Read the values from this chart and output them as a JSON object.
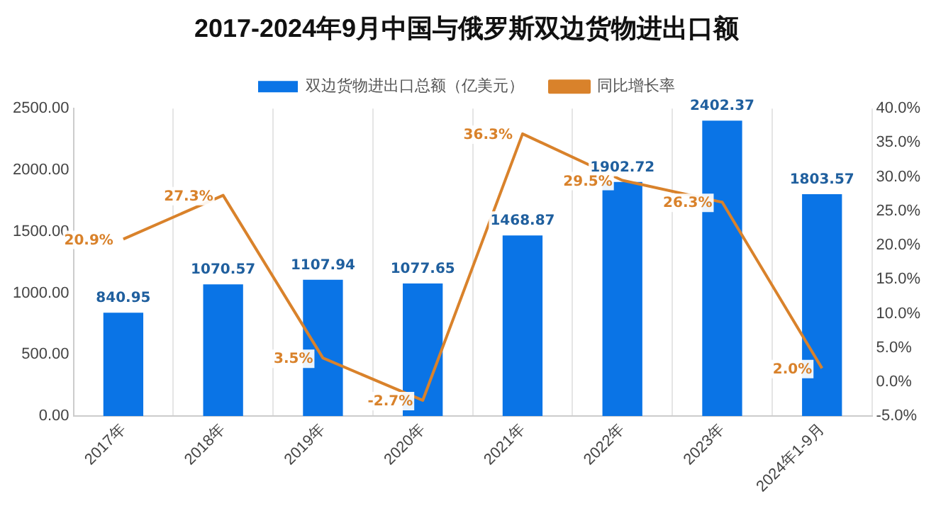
{
  "chart_data": {
    "type": "bar",
    "title": "2017-2024年9月中国与俄罗斯双边货物进出口额",
    "categories": [
      "2017年",
      "2018年",
      "2019年",
      "2020年",
      "2021年",
      "2022年",
      "2023年",
      "2024年1-9月"
    ],
    "series": [
      {
        "name": "双边货物进出口总额（亿美元）",
        "color": "#0a74e6",
        "values": [
          840.95,
          1070.57,
          1107.94,
          1077.65,
          1468.87,
          1902.72,
          2402.37,
          1803.57
        ]
      },
      {
        "name": "同比增长率",
        "type": "line",
        "axis": "y2",
        "color": "#d9822b",
        "values": [
          20.9,
          27.3,
          3.5,
          -2.7,
          36.3,
          29.5,
          26.3,
          2.0
        ],
        "value_labels": [
          "20.9%",
          "27.3%",
          "3.5%",
          "-2.7%",
          "36.3%",
          "29.5%",
          "26.3%",
          "2.0%"
        ]
      }
    ],
    "data_labels": true,
    "ylim": [
      0,
      2500
    ],
    "yticks": [
      {
        "value": 0,
        "label": "0.00"
      },
      {
        "value": 500,
        "label": "500.00"
      },
      {
        "value": 1000,
        "label": "1000.00"
      },
      {
        "value": 1500,
        "label": "1500.00"
      },
      {
        "value": 2000,
        "label": "2000.00"
      },
      {
        "value": 2500,
        "label": "2500.00"
      }
    ],
    "y2lim": [
      -5,
      40
    ],
    "y2ticks": [
      {
        "value": -5,
        "label": "-5.0%"
      },
      {
        "value": 0,
        "label": "0.0%"
      },
      {
        "value": 5,
        "label": "5.0%"
      },
      {
        "value": 10,
        "label": "10.0%"
      },
      {
        "value": 15,
        "label": "15.0%"
      },
      {
        "value": 20,
        "label": "20.0%"
      },
      {
        "value": 25,
        "label": "25.0%"
      },
      {
        "value": 30,
        "label": "30.0%"
      },
      {
        "value": 35,
        "label": "35.0%"
      },
      {
        "value": 40,
        "label": "40.0%"
      }
    ],
    "grid": "x",
    "legend": "top",
    "marker": "none",
    "line_style": "solid"
  }
}
